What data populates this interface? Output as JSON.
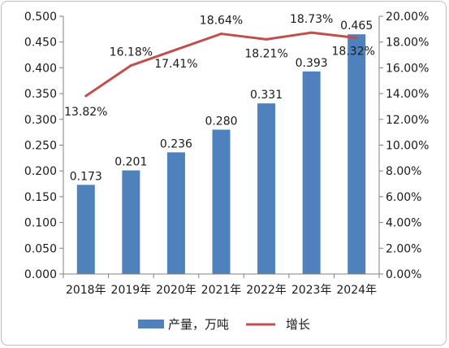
{
  "chart_data": {
    "type": "bar+line",
    "categories": [
      "2018年",
      "2019年",
      "2020年",
      "2021年",
      "2022年",
      "2023年",
      "2024年"
    ],
    "series": [
      {
        "name": "产量，万吨",
        "type": "bar",
        "axis": "left",
        "color": "#4f81bd",
        "values": [
          0.173,
          0.201,
          0.236,
          0.28,
          0.331,
          0.393,
          0.465
        ],
        "labels": [
          "0.173",
          "0.201",
          "0.236",
          "0.280",
          "0.331",
          "0.393",
          "0.465"
        ]
      },
      {
        "name": "增长",
        "type": "line",
        "axis": "right",
        "color": "#c0504d",
        "values": [
          13.82,
          16.18,
          17.41,
          18.64,
          18.21,
          18.73,
          18.32
        ],
        "labels": [
          "13.82%",
          "16.18%",
          "17.41%",
          "18.64%",
          "18.21%",
          "18.73%",
          "18.32%"
        ]
      }
    ],
    "y_left": {
      "ylim": [
        0,
        0.5
      ],
      "ticks": [
        "0.000",
        "0.050",
        "0.100",
        "0.150",
        "0.200",
        "0.250",
        "0.300",
        "0.350",
        "0.400",
        "0.450",
        "0.500"
      ]
    },
    "y_right": {
      "ylim": [
        0,
        20
      ],
      "ticks": [
        "0.00%",
        "2.00%",
        "4.00%",
        "6.00%",
        "8.00%",
        "10.00%",
        "12.00%",
        "14.00%",
        "16.00%",
        "18.00%",
        "20.00%"
      ]
    },
    "grid": false,
    "legend": "bottom"
  }
}
